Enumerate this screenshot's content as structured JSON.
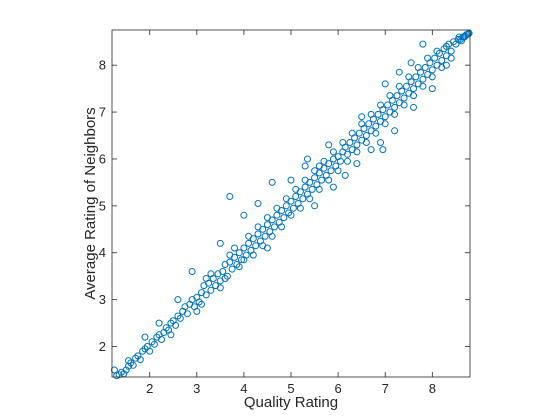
{
  "chart_data": {
    "type": "scatter",
    "title": "",
    "xlabel": "Quality Rating",
    "ylabel": "Average Rating of Neighbors",
    "xlim": [
      1.2,
      8.8
    ],
    "ylim": [
      1.35,
      8.75
    ],
    "xticks": [
      2,
      3,
      4,
      5,
      6,
      7,
      8
    ],
    "yticks": [
      2,
      3,
      4,
      5,
      6,
      7,
      8
    ],
    "grid": false,
    "marker": "open-circle",
    "color": "#0072BD",
    "series": [
      {
        "name": "",
        "points": [
          [
            1.25,
            1.5
          ],
          [
            1.3,
            1.38
          ],
          [
            1.35,
            1.4
          ],
          [
            1.4,
            1.45
          ],
          [
            1.45,
            1.42
          ],
          [
            1.5,
            1.5
          ],
          [
            1.55,
            1.58
          ],
          [
            1.6,
            1.65
          ],
          [
            1.55,
            1.7
          ],
          [
            1.65,
            1.6
          ],
          [
            1.7,
            1.75
          ],
          [
            1.75,
            1.8
          ],
          [
            1.8,
            1.72
          ],
          [
            1.85,
            1.9
          ],
          [
            1.9,
            1.95
          ],
          [
            1.95,
            2.0
          ],
          [
            2.0,
            1.9
          ],
          [
            2.05,
            2.1
          ],
          [
            2.1,
            2.05
          ],
          [
            2.15,
            2.2
          ],
          [
            2.2,
            2.25
          ],
          [
            2.25,
            2.15
          ],
          [
            2.3,
            2.3
          ],
          [
            2.35,
            2.4
          ],
          [
            2.4,
            2.35
          ],
          [
            2.45,
            2.5
          ],
          [
            2.5,
            2.55
          ],
          [
            2.55,
            2.45
          ],
          [
            2.6,
            2.65
          ],
          [
            2.65,
            2.6
          ],
          [
            2.7,
            2.75
          ],
          [
            2.75,
            2.85
          ],
          [
            2.8,
            2.7
          ],
          [
            2.85,
            2.9
          ],
          [
            2.9,
            3.0
          ],
          [
            2.95,
            2.85
          ],
          [
            3.0,
            3.05
          ],
          [
            3.05,
            2.95
          ],
          [
            3.1,
            3.15
          ],
          [
            3.15,
            3.3
          ],
          [
            3.2,
            3.1
          ],
          [
            3.25,
            3.35
          ],
          [
            3.3,
            3.2
          ],
          [
            3.35,
            3.45
          ],
          [
            3.4,
            3.3
          ],
          [
            3.45,
            3.55
          ],
          [
            3.5,
            3.4
          ],
          [
            3.55,
            3.6
          ],
          [
            3.6,
            3.75
          ],
          [
            3.65,
            3.5
          ],
          [
            3.7,
            3.8
          ],
          [
            3.75,
            3.65
          ],
          [
            3.8,
            3.9
          ],
          [
            3.85,
            3.75
          ],
          [
            3.9,
            4.0
          ],
          [
            3.95,
            3.85
          ],
          [
            4.0,
            4.1
          ],
          [
            4.05,
            3.95
          ],
          [
            4.1,
            4.2
          ],
          [
            4.15,
            4.05
          ],
          [
            4.2,
            4.3
          ],
          [
            4.25,
            4.15
          ],
          [
            4.3,
            4.4
          ],
          [
            4.35,
            4.25
          ],
          [
            4.4,
            4.5
          ],
          [
            4.45,
            4.35
          ],
          [
            4.5,
            4.6
          ],
          [
            4.55,
            4.45
          ],
          [
            4.6,
            4.7
          ],
          [
            4.65,
            4.55
          ],
          [
            4.7,
            4.8
          ],
          [
            4.75,
            4.65
          ],
          [
            4.8,
            4.9
          ],
          [
            4.85,
            4.75
          ],
          [
            4.9,
            5.0
          ],
          [
            4.95,
            4.85
          ],
          [
            5.0,
            5.1
          ],
          [
            5.05,
            4.95
          ],
          [
            5.1,
            5.2
          ],
          [
            5.15,
            5.05
          ],
          [
            5.2,
            5.3
          ],
          [
            5.25,
            5.15
          ],
          [
            5.3,
            5.4
          ],
          [
            5.35,
            5.25
          ],
          [
            5.4,
            5.5
          ],
          [
            5.45,
            5.35
          ],
          [
            5.5,
            5.6
          ],
          [
            5.55,
            5.45
          ],
          [
            5.6,
            5.7
          ],
          [
            5.65,
            5.55
          ],
          [
            5.7,
            5.8
          ],
          [
            5.75,
            5.65
          ],
          [
            5.8,
            5.9
          ],
          [
            5.85,
            5.75
          ],
          [
            5.9,
            6.0
          ],
          [
            5.95,
            5.85
          ],
          [
            6.0,
            6.05
          ],
          [
            6.05,
            5.95
          ],
          [
            6.1,
            6.15
          ],
          [
            6.15,
            6.25
          ],
          [
            6.2,
            6.1
          ],
          [
            6.25,
            6.35
          ],
          [
            6.3,
            6.2
          ],
          [
            6.35,
            6.45
          ],
          [
            6.4,
            6.3
          ],
          [
            6.45,
            6.55
          ],
          [
            6.5,
            6.4
          ],
          [
            6.55,
            6.65
          ],
          [
            6.6,
            6.5
          ],
          [
            6.65,
            6.75
          ],
          [
            6.7,
            6.6
          ],
          [
            6.75,
            6.85
          ],
          [
            6.8,
            6.7
          ],
          [
            6.85,
            6.95
          ],
          [
            6.9,
            6.8
          ],
          [
            6.95,
            7.05
          ],
          [
            7.0,
            6.9
          ],
          [
            7.05,
            7.15
          ],
          [
            7.1,
            7.0
          ],
          [
            7.15,
            7.25
          ],
          [
            7.2,
            7.1
          ],
          [
            7.25,
            7.35
          ],
          [
            7.3,
            7.2
          ],
          [
            7.35,
            7.45
          ],
          [
            7.4,
            7.3
          ],
          [
            7.45,
            7.55
          ],
          [
            7.5,
            7.4
          ],
          [
            7.55,
            7.65
          ],
          [
            7.6,
            7.5
          ],
          [
            7.65,
            7.75
          ],
          [
            7.7,
            7.6
          ],
          [
            7.75,
            7.85
          ],
          [
            7.8,
            7.7
          ],
          [
            7.85,
            7.95
          ],
          [
            7.9,
            7.8
          ],
          [
            7.95,
            8.05
          ],
          [
            8.0,
            7.9
          ],
          [
            8.05,
            8.15
          ],
          [
            8.1,
            8.0
          ],
          [
            8.15,
            8.25
          ],
          [
            8.2,
            8.1
          ],
          [
            8.25,
            8.35
          ],
          [
            8.3,
            8.2
          ],
          [
            8.35,
            8.45
          ],
          [
            8.4,
            8.3
          ],
          [
            8.45,
            8.5
          ],
          [
            8.5,
            8.45
          ],
          [
            8.55,
            8.55
          ],
          [
            8.6,
            8.55
          ],
          [
            8.65,
            8.6
          ],
          [
            8.7,
            8.62
          ],
          [
            8.72,
            8.65
          ],
          [
            8.75,
            8.66
          ],
          [
            8.77,
            8.67
          ],
          [
            8.78,
            8.68
          ],
          [
            8.68,
            8.6
          ],
          [
            8.62,
            8.52
          ],
          [
            8.57,
            8.6
          ],
          [
            3.0,
            2.75
          ],
          [
            3.1,
            2.9
          ],
          [
            3.2,
            3.45
          ],
          [
            3.3,
            3.55
          ],
          [
            3.5,
            3.25
          ],
          [
            3.6,
            3.45
          ],
          [
            3.7,
            3.95
          ],
          [
            3.8,
            4.1
          ],
          [
            3.9,
            3.7
          ],
          [
            4.0,
            3.85
          ],
          [
            4.1,
            4.35
          ],
          [
            4.2,
            3.95
          ],
          [
            4.3,
            4.55
          ],
          [
            4.4,
            4.15
          ],
          [
            4.5,
            4.75
          ],
          [
            4.6,
            4.35
          ],
          [
            4.7,
            4.95
          ],
          [
            4.8,
            4.55
          ],
          [
            4.9,
            5.15
          ],
          [
            5.0,
            4.8
          ],
          [
            5.1,
            5.35
          ],
          [
            5.2,
            4.95
          ],
          [
            5.3,
            5.55
          ],
          [
            5.4,
            5.15
          ],
          [
            5.5,
            5.75
          ],
          [
            5.6,
            5.35
          ],
          [
            5.7,
            5.95
          ],
          [
            5.8,
            5.55
          ],
          [
            5.9,
            6.15
          ],
          [
            6.0,
            5.75
          ],
          [
            6.1,
            6.35
          ],
          [
            6.2,
            5.95
          ],
          [
            6.3,
            6.55
          ],
          [
            6.4,
            6.15
          ],
          [
            6.5,
            6.75
          ],
          [
            6.6,
            6.35
          ],
          [
            6.7,
            6.95
          ],
          [
            6.8,
            6.55
          ],
          [
            6.9,
            7.15
          ],
          [
            7.0,
            6.75
          ],
          [
            7.1,
            7.35
          ],
          [
            7.2,
            6.95
          ],
          [
            7.3,
            7.55
          ],
          [
            7.4,
            7.15
          ],
          [
            7.5,
            7.75
          ],
          [
            7.6,
            7.35
          ],
          [
            7.7,
            7.95
          ],
          [
            7.8,
            7.55
          ],
          [
            7.9,
            8.15
          ],
          [
            8.0,
            7.75
          ],
          [
            8.1,
            8.3
          ],
          [
            8.2,
            7.95
          ],
          [
            8.3,
            8.4
          ],
          [
            8.4,
            8.15
          ],
          [
            3.7,
            5.2
          ],
          [
            4.0,
            4.8
          ],
          [
            4.3,
            5.05
          ],
          [
            4.6,
            5.5
          ],
          [
            5.0,
            5.55
          ],
          [
            5.3,
            5.85
          ],
          [
            5.6,
            5.85
          ],
          [
            5.8,
            6.3
          ],
          [
            5.35,
            6.0
          ],
          [
            6.15,
            5.65
          ],
          [
            6.5,
            6.9
          ],
          [
            6.9,
            6.35
          ],
          [
            7.3,
            7.85
          ],
          [
            7.0,
            7.6
          ],
          [
            7.55,
            8.05
          ],
          [
            7.8,
            8.45
          ],
          [
            4.5,
            4.1
          ],
          [
            3.5,
            4.2
          ],
          [
            2.9,
            3.6
          ],
          [
            2.6,
            3.0
          ],
          [
            2.2,
            2.5
          ],
          [
            1.9,
            2.2
          ],
          [
            2.45,
            2.25
          ],
          [
            5.9,
            5.4
          ],
          [
            6.4,
            5.9
          ],
          [
            6.7,
            6.2
          ],
          [
            7.2,
            6.6
          ],
          [
            7.6,
            7.1
          ],
          [
            8.0,
            7.5
          ],
          [
            8.3,
            8.0
          ],
          [
            6.95,
            6.2
          ],
          [
            5.5,
            5.0
          ]
        ]
      }
    ]
  }
}
